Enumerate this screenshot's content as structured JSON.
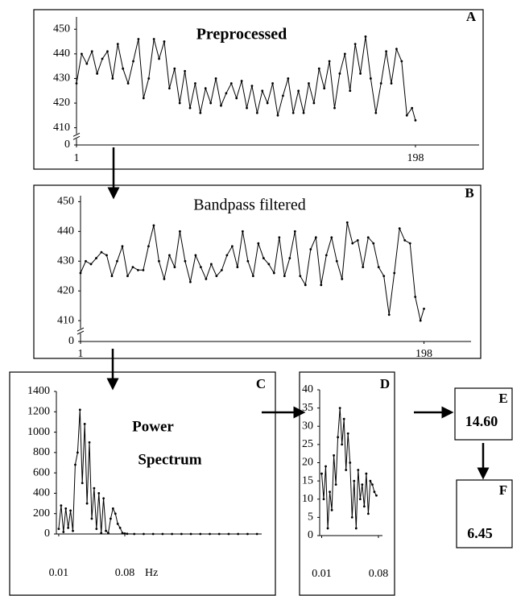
{
  "chart_data": [
    {
      "type": "line",
      "panel": "A",
      "title": "Preprocessed",
      "axis_break": true,
      "x": [
        1,
        4,
        7,
        10,
        13,
        16,
        19,
        22,
        25,
        28,
        31,
        34,
        37,
        40,
        43,
        46,
        49,
        52,
        55,
        58,
        61,
        64,
        67,
        70,
        73,
        76,
        79,
        82,
        85,
        88,
        91,
        94,
        97,
        100,
        103,
        106,
        109,
        112,
        115,
        118,
        121,
        124,
        127,
        130,
        133,
        136,
        139,
        142,
        145,
        148,
        151,
        154,
        157,
        160,
        163,
        166,
        169,
        172,
        175,
        178,
        181,
        184,
        187,
        190,
        193,
        196,
        198
      ],
      "values": [
        428,
        440,
        436,
        441,
        432,
        438,
        441,
        430,
        444,
        434,
        428,
        437,
        446,
        422,
        430,
        446,
        438,
        445,
        426,
        434,
        420,
        433,
        418,
        428,
        416,
        426,
        420,
        430,
        419,
        424,
        428,
        422,
        429,
        418,
        427,
        416,
        425,
        420,
        428,
        415,
        423,
        430,
        416,
        425,
        416,
        428,
        420,
        434,
        426,
        437,
        418,
        432,
        440,
        425,
        444,
        432,
        447,
        430,
        416,
        428,
        441,
        428,
        442,
        437,
        415,
        418,
        413
      ],
      "xlim": [
        1,
        235
      ],
      "xticks": [
        1,
        198
      ],
      "ylim": [
        0,
        455
      ],
      "yticks": [
        0,
        410,
        420,
        430,
        440,
        450
      ]
    },
    {
      "type": "line",
      "panel": "B",
      "title": "Bandpass filtered",
      "axis_break": true,
      "x": [
        1,
        4,
        7,
        10,
        13,
        16,
        19,
        22,
        25,
        28,
        31,
        34,
        37,
        40,
        43,
        46,
        49,
        52,
        55,
        58,
        61,
        64,
        67,
        70,
        73,
        76,
        79,
        82,
        85,
        88,
        91,
        94,
        97,
        100,
        103,
        106,
        109,
        112,
        115,
        118,
        121,
        124,
        127,
        130,
        133,
        136,
        139,
        142,
        145,
        148,
        151,
        154,
        157,
        160,
        163,
        166,
        169,
        172,
        175,
        178,
        181,
        184,
        187,
        190,
        193,
        196,
        198
      ],
      "values": [
        426,
        430,
        429,
        431,
        433,
        432,
        425,
        430,
        435,
        425,
        428,
        427,
        427,
        435,
        442,
        430,
        424,
        432,
        428,
        440,
        430,
        423,
        432,
        428,
        424,
        429,
        425,
        427,
        432,
        435,
        428,
        440,
        430,
        425,
        436,
        431,
        429,
        426,
        438,
        425,
        431,
        440,
        425,
        422,
        434,
        438,
        422,
        432,
        438,
        430,
        424,
        443,
        436,
        437,
        428,
        438,
        436,
        428,
        425,
        412,
        426,
        441,
        437,
        436,
        418,
        410,
        414
      ],
      "xlim": [
        1,
        225
      ],
      "xticks": [
        1,
        198
      ],
      "ylim": [
        0,
        452
      ],
      "yticks": [
        0,
        410,
        420,
        430,
        440,
        450
      ]
    },
    {
      "type": "line",
      "panel": "C",
      "title": "Power",
      "subtitle": "Spectrum",
      "xlabel": "Hz",
      "x": [
        0.01,
        0.0125,
        0.015,
        0.0175,
        0.02,
        0.0225,
        0.025,
        0.0275,
        0.03,
        0.0325,
        0.035,
        0.0375,
        0.04,
        0.0425,
        0.045,
        0.0475,
        0.05,
        0.0525,
        0.055,
        0.0575,
        0.06,
        0.0625,
        0.065,
        0.0675,
        0.07,
        0.0725,
        0.075,
        0.0775,
        0.08,
        0.0825,
        0.09,
        0.1,
        0.11,
        0.12,
        0.13,
        0.14,
        0.15,
        0.16,
        0.17,
        0.18,
        0.19,
        0.2,
        0.21,
        0.22
      ],
      "values": [
        50,
        280,
        20,
        250,
        60,
        230,
        30,
        680,
        800,
        1220,
        500,
        1080,
        300,
        900,
        150,
        450,
        50,
        400,
        10,
        350,
        30,
        10,
        150,
        250,
        200,
        100,
        60,
        10,
        5,
        2,
        0,
        0,
        0,
        0,
        0,
        0,
        0,
        0,
        0,
        0,
        0,
        0,
        0,
        0
      ],
      "xlim": [
        0.0075,
        0.225
      ],
      "xticks": [
        0.01,
        0.08
      ],
      "ylim": [
        0,
        1400
      ],
      "yticks": [
        0,
        200,
        400,
        600,
        800,
        1000,
        1200,
        1400
      ]
    },
    {
      "type": "line",
      "panel": "D",
      "x": [
        0.01,
        0.0125,
        0.015,
        0.0175,
        0.02,
        0.0225,
        0.025,
        0.0275,
        0.03,
        0.0325,
        0.035,
        0.0375,
        0.04,
        0.0425,
        0.045,
        0.0475,
        0.05,
        0.0525,
        0.055,
        0.0575,
        0.06,
        0.0625,
        0.065,
        0.0675,
        0.07,
        0.0725,
        0.075,
        0.0775
      ],
      "values": [
        17,
        10,
        19,
        2,
        12,
        7,
        22,
        14,
        27,
        35,
        25,
        32,
        18,
        28,
        20,
        5,
        15,
        2,
        18,
        10,
        14,
        8,
        17,
        6,
        15,
        14,
        12,
        11
      ],
      "xlim": [
        0.0075,
        0.085
      ],
      "xticks": [
        0.01,
        0.08
      ],
      "ylim": [
        0,
        40
      ],
      "yticks": [
        0,
        5,
        10,
        15,
        20,
        25,
        30,
        35,
        40
      ]
    }
  ],
  "results": [
    {
      "panel": "E",
      "value": "14.60"
    },
    {
      "panel": "F",
      "value": "6.45"
    }
  ]
}
